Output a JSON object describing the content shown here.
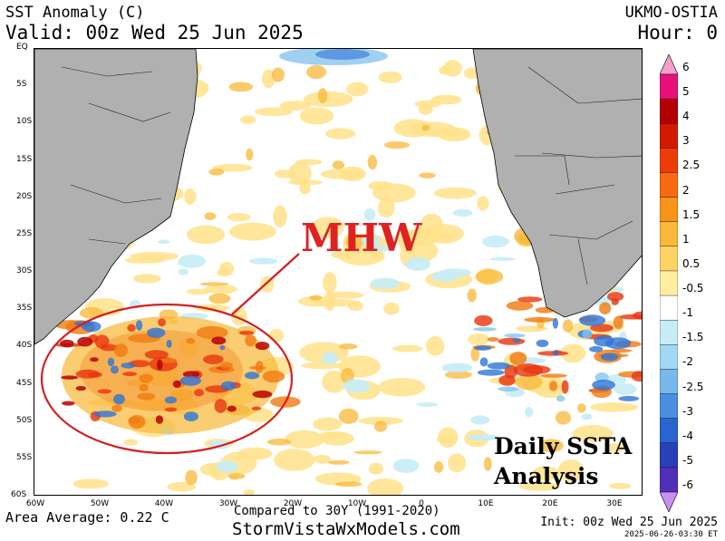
{
  "header": {
    "title": "SST Anomaly (C)",
    "valid": "Valid: 00z Wed 25 Jun 2025",
    "model": "UKMO-OSTIA",
    "hour": "Hour: 0"
  },
  "map": {
    "lat_labels": [
      "EQ",
      "5S",
      "10S",
      "15S",
      "20S",
      "25S",
      "30S",
      "35S",
      "40S",
      "45S",
      "50S",
      "55S",
      "60S"
    ],
    "lon_labels": [
      "60W",
      "50W",
      "40W",
      "30W",
      "20W",
      "10W",
      "0",
      "10E",
      "20E",
      "30E"
    ],
    "colors": {
      "land": "#b0b0b0",
      "ocean_neutral": "#ffffff",
      "warm_light": "#ffe28a",
      "warm": "#f8b838",
      "warm_strong": "#f07a10",
      "hot": "#e8340c",
      "very_hot": "#b80000",
      "cool_light": "#c6ecf6",
      "cool": "#88c4ee",
      "cold": "#2e74d8"
    }
  },
  "annotations": {
    "mhw": "MHW",
    "daily_line1": "Daily SSTA",
    "daily_line2": "Analysis",
    "circle_color": "#d42020"
  },
  "colorbar": {
    "labels": [
      "6",
      "5",
      "4",
      "3",
      "2.5",
      "2",
      "1.5",
      "1",
      "0.5",
      "-0.5",
      "-1",
      "-1.5",
      "-2",
      "-2.5",
      "-3",
      "-4",
      "-5",
      "-6"
    ],
    "colors": [
      "#e8107a",
      "#b40000",
      "#d21a00",
      "#ee3c08",
      "#f86a10",
      "#f89418",
      "#fab83a",
      "#fcd466",
      "#ffeea0",
      "#ffffff",
      "#c6ecf6",
      "#a2d8f2",
      "#78b8ec",
      "#4a8ee2",
      "#2a64d0",
      "#2a40b8",
      "#5030b8",
      "#8a18d0",
      "#a010e0"
    ]
  },
  "footer": {
    "area_average": "Area Average: 0.22 C",
    "compared": "Compared to 30Y (1991-2020)",
    "site": "StormVistaWxModels.com",
    "init": "Init: 00z Wed 25 Jun 2025",
    "stamp": "2025-06-26-03:30 ET"
  }
}
